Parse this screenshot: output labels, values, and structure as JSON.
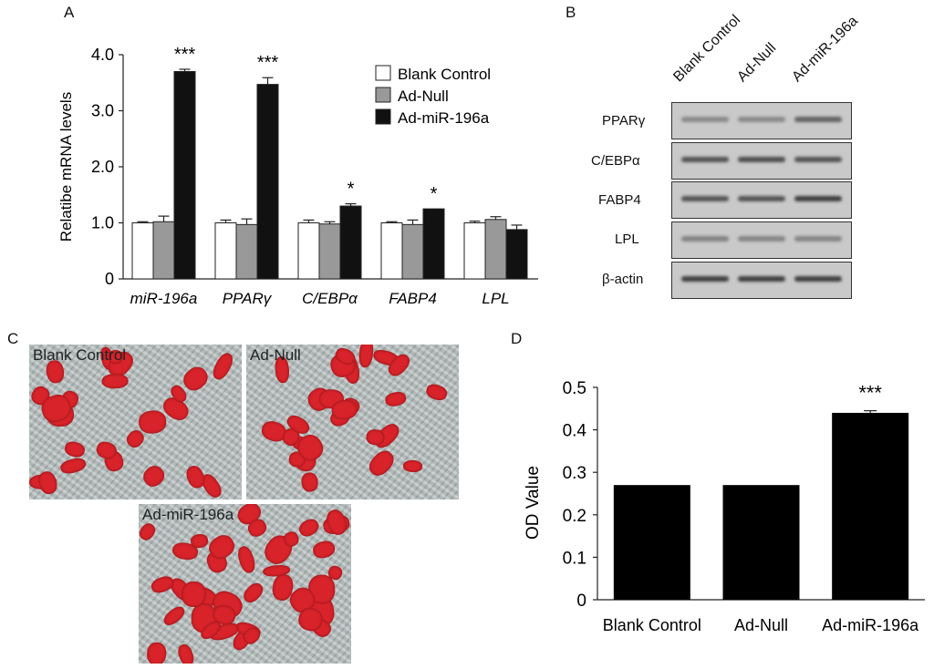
{
  "panels": {
    "a": "A",
    "b": "B",
    "c": "C",
    "d": "D"
  },
  "chart_data": [
    {
      "type": "bar",
      "title": "",
      "ylabel": "Relatibe mRNA levels",
      "xlabel": "",
      "categories": [
        "miR-196a",
        "PPARγ",
        "C/EBPα",
        "FABP4",
        "LPL"
      ],
      "ylim": [
        0,
        4.0
      ],
      "yticks": [
        "0",
        "1.0",
        "2.0",
        "3.0",
        "4.0"
      ],
      "legend_position": "top-right",
      "series": [
        {
          "name": "Blank Control",
          "color": "#ffffff",
          "values": [
            1.0,
            1.0,
            1.0,
            1.0,
            1.0
          ],
          "errors": [
            0.02,
            0.05,
            0.05,
            0.02,
            0.03
          ]
        },
        {
          "name": "Ad-Null",
          "color": "#999999",
          "values": [
            1.02,
            0.97,
            0.98,
            0.97,
            1.06
          ],
          "errors": [
            0.1,
            0.1,
            0.04,
            0.08,
            0.05
          ]
        },
        {
          "name": "Ad-miR-196a",
          "color": "#111111",
          "values": [
            3.7,
            3.47,
            1.3,
            1.25,
            0.88
          ],
          "errors": [
            0.04,
            0.12,
            0.04,
            0.0,
            0.08
          ]
        }
      ],
      "significance": [
        "***",
        "***",
        "*",
        "*",
        ""
      ]
    },
    {
      "type": "bar",
      "title": "",
      "ylabel": "OD Value",
      "xlabel": "",
      "categories": [
        "Blank Control",
        "Ad-Null",
        "Ad-miR-196a"
      ],
      "ylim": [
        0,
        0.5
      ],
      "yticks": [
        "0",
        "0.1",
        "0.2",
        "0.3",
        "0.4",
        "0.5"
      ],
      "values": [
        0.27,
        0.27,
        0.44
      ],
      "errors": [
        0,
        0,
        0.005
      ],
      "color": "#000000",
      "significance": [
        "",
        "",
        "***"
      ]
    }
  ],
  "western_blot": {
    "lanes": [
      "Blank Control",
      "Ad-Null",
      "Ad-miR-196a"
    ],
    "rows": [
      {
        "label": "PPARγ",
        "intensity": [
          0.35,
          0.35,
          0.6
        ]
      },
      {
        "label": "C/EBPα",
        "intensity": [
          0.7,
          0.75,
          0.7
        ]
      },
      {
        "label": "FABP4",
        "intensity": [
          0.7,
          0.7,
          0.85
        ]
      },
      {
        "label": "LPL",
        "intensity": [
          0.4,
          0.38,
          0.38
        ]
      },
      {
        "label": "β-actin",
        "intensity": [
          0.85,
          0.85,
          0.85
        ]
      }
    ]
  },
  "micrographs": [
    "Blank Control",
    "Ad-Null",
    "Ad-miR-196a"
  ]
}
